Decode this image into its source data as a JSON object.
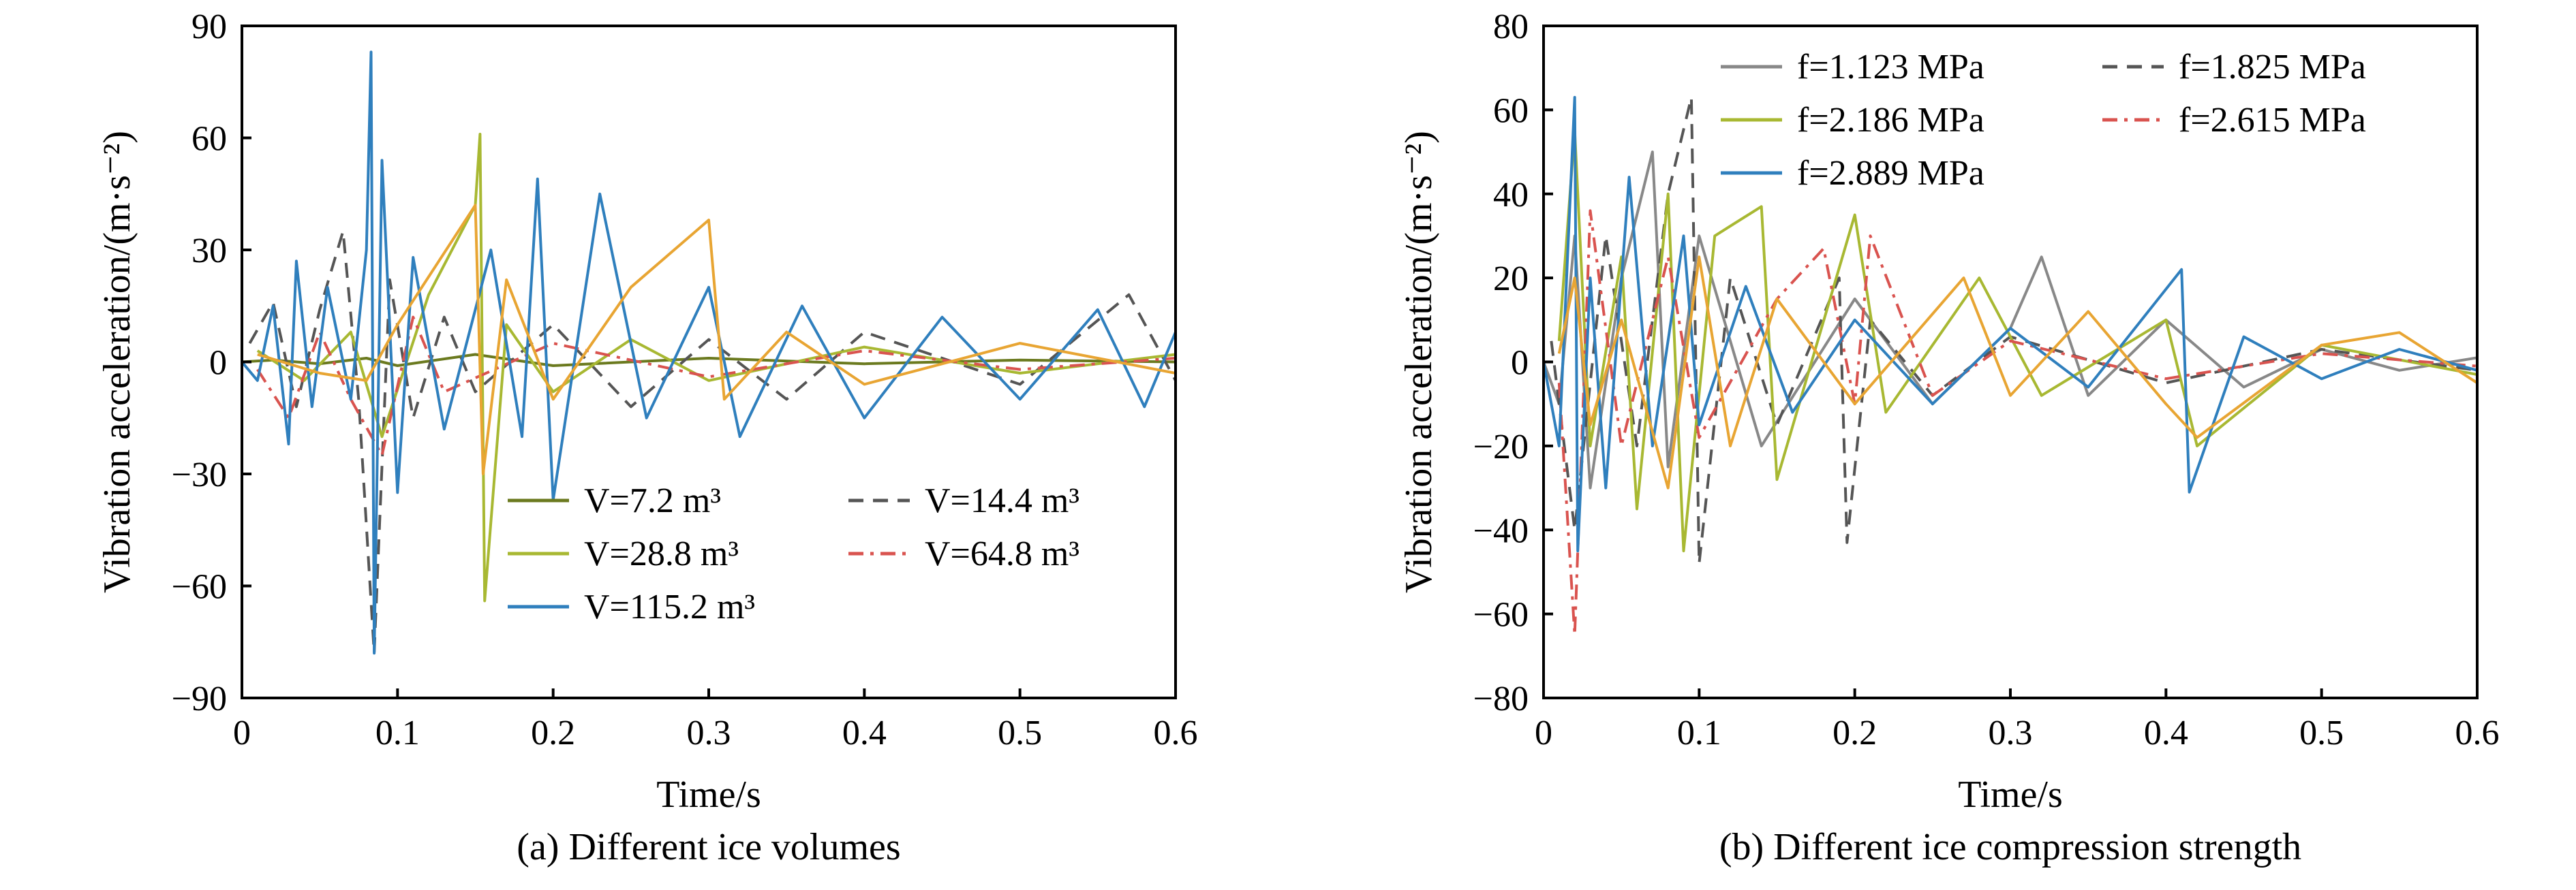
{
  "chart_data": [
    {
      "type": "line",
      "panel": "a",
      "caption": "(a) Different ice volumes",
      "xlabel": "Time/s",
      "ylabel": "Vibration acceleration/(m·s⁻²)",
      "xlim": [
        0,
        0.6
      ],
      "ylim": [
        -90,
        90
      ],
      "xticks": [
        "0",
        "0.1",
        "0.2",
        "0.3",
        "0.4",
        "0.5",
        "0.6"
      ],
      "xtick_values": [
        0,
        0.1,
        0.2,
        0.3,
        0.4,
        0.5,
        0.6
      ],
      "yticks": [
        "90",
        "60",
        "30",
        "0",
        "−30",
        "−60",
        "−90"
      ],
      "ytick_values": [
        90,
        60,
        30,
        0,
        -30,
        -60,
        -90
      ],
      "legend_position": "bottom-right",
      "series": [
        {
          "name": "V=7.2 m³",
          "color": "#6b7a1f",
          "dash": "solid",
          "points": [
            [
              0,
              0
            ],
            [
              0.02,
              0.5
            ],
            [
              0.05,
              -0.5
            ],
            [
              0.08,
              1
            ],
            [
              0.1,
              -1
            ],
            [
              0.15,
              2
            ],
            [
              0.2,
              -1
            ],
            [
              0.3,
              1
            ],
            [
              0.4,
              -0.5
            ],
            [
              0.5,
              0.5
            ],
            [
              0.6,
              0
            ]
          ]
        },
        {
          "name": "V=14.4 m³",
          "color": "#555555",
          "dash": "dashed",
          "points": [
            [
              0.005,
              5
            ],
            [
              0.02,
              16
            ],
            [
              0.035,
              -12
            ],
            [
              0.05,
              14
            ],
            [
              0.065,
              35
            ],
            [
              0.075,
              -10
            ],
            [
              0.085,
              -78
            ],
            [
              0.095,
              22
            ],
            [
              0.11,
              -15
            ],
            [
              0.13,
              12
            ],
            [
              0.15,
              -8
            ],
            [
              0.2,
              10
            ],
            [
              0.25,
              -12
            ],
            [
              0.3,
              6
            ],
            [
              0.35,
              -10
            ],
            [
              0.4,
              8
            ],
            [
              0.5,
              -6
            ],
            [
              0.57,
              18
            ],
            [
              0.6,
              -5
            ]
          ]
        },
        {
          "name": "V=28.8 m³",
          "color": "#a8b832",
          "dash": "solid",
          "points": [
            [
              0.01,
              3
            ],
            [
              0.04,
              -5
            ],
            [
              0.07,
              8
            ],
            [
              0.09,
              -20
            ],
            [
              0.12,
              18
            ],
            [
              0.15,
              42
            ],
            [
              0.153,
              61
            ],
            [
              0.156,
              -64
            ],
            [
              0.17,
              10
            ],
            [
              0.2,
              -8
            ],
            [
              0.25,
              6
            ],
            [
              0.3,
              -5
            ],
            [
              0.4,
              4
            ],
            [
              0.5,
              -3
            ],
            [
              0.6,
              2
            ]
          ]
        },
        {
          "name": "V=64.8 m³",
          "color": "#d9534f",
          "dash": "dashdot",
          "points": [
            [
              0.01,
              -2
            ],
            [
              0.03,
              -15
            ],
            [
              0.05,
              8
            ],
            [
              0.07,
              -10
            ],
            [
              0.09,
              -25
            ],
            [
              0.11,
              12
            ],
            [
              0.13,
              -8
            ],
            [
              0.2,
              5
            ],
            [
              0.3,
              -4
            ],
            [
              0.4,
              3
            ],
            [
              0.5,
              -2
            ],
            [
              0.6,
              1
            ]
          ]
        },
        {
          "name": "V=115.2 m³",
          "color": "#2f7fbd",
          "dash": "solid",
          "points": [
            [
              0,
              0
            ],
            [
              0.01,
              -5
            ],
            [
              0.02,
              15
            ],
            [
              0.03,
              -22
            ],
            [
              0.035,
              27
            ],
            [
              0.045,
              -12
            ],
            [
              0.055,
              20
            ],
            [
              0.07,
              -10
            ],
            [
              0.08,
              30
            ],
            [
              0.083,
              83
            ],
            [
              0.085,
              -78
            ],
            [
              0.09,
              54
            ],
            [
              0.1,
              -35
            ],
            [
              0.11,
              28
            ],
            [
              0.13,
              -18
            ],
            [
              0.16,
              30
            ],
            [
              0.18,
              -20
            ],
            [
              0.19,
              49
            ],
            [
              0.2,
              -37
            ],
            [
              0.23,
              45
            ],
            [
              0.26,
              -15
            ],
            [
              0.3,
              20
            ],
            [
              0.32,
              -20
            ],
            [
              0.36,
              15
            ],
            [
              0.4,
              -15
            ],
            [
              0.45,
              12
            ],
            [
              0.5,
              -10
            ],
            [
              0.55,
              14
            ],
            [
              0.58,
              -12
            ],
            [
              0.6,
              8
            ]
          ]
        },
        {
          "name": "",
          "color": "#e8a533",
          "dash": "solid",
          "points": [
            [
              0.01,
              2
            ],
            [
              0.05,
              -3
            ],
            [
              0.08,
              -5
            ],
            [
              0.1,
              10
            ],
            [
              0.15,
              42
            ],
            [
              0.155,
              -30
            ],
            [
              0.17,
              22
            ],
            [
              0.2,
              -10
            ],
            [
              0.25,
              20
            ],
            [
              0.3,
              38
            ],
            [
              0.31,
              -10
            ],
            [
              0.35,
              8
            ],
            [
              0.4,
              -6
            ],
            [
              0.5,
              5
            ],
            [
              0.6,
              -3
            ]
          ]
        }
      ]
    },
    {
      "type": "line",
      "panel": "b",
      "caption": "(b) Different ice compression strength",
      "xlabel": "Time/s",
      "ylabel": "Vibration acceleration/(m·s⁻²)",
      "xlim": [
        0,
        0.6
      ],
      "ylim": [
        -80,
        80
      ],
      "xticks": [
        "0",
        "0.1",
        "0.2",
        "0.3",
        "0.4",
        "0.5",
        "0.6"
      ],
      "xtick_values": [
        0,
        0.1,
        0.2,
        0.3,
        0.4,
        0.5,
        0.6
      ],
      "yticks": [
        "80",
        "60",
        "40",
        "20",
        "0",
        "−20",
        "−40",
        "−60",
        "−80"
      ],
      "ytick_values": [
        80,
        60,
        40,
        20,
        0,
        -20,
        -40,
        -60,
        -80
      ],
      "legend_position": "top-right",
      "series": [
        {
          "name": "f=1.123 MPa",
          "color": "#888888",
          "dash": "solid",
          "points": [
            [
              0,
              0
            ],
            [
              0.01,
              -10
            ],
            [
              0.02,
              30
            ],
            [
              0.03,
              -30
            ],
            [
              0.05,
              20
            ],
            [
              0.07,
              50
            ],
            [
              0.08,
              -25
            ],
            [
              0.1,
              30
            ],
            [
              0.14,
              -20
            ],
            [
              0.2,
              15
            ],
            [
              0.25,
              -10
            ],
            [
              0.3,
              8
            ],
            [
              0.32,
              25
            ],
            [
              0.35,
              -8
            ],
            [
              0.4,
              10
            ],
            [
              0.45,
              -6
            ],
            [
              0.5,
              3
            ],
            [
              0.55,
              -2
            ],
            [
              0.6,
              1
            ]
          ]
        },
        {
          "name": "f=1.825 MPa",
          "color": "#555555",
          "dash": "dashed",
          "points": [
            [
              0.005,
              5
            ],
            [
              0.02,
              -40
            ],
            [
              0.04,
              30
            ],
            [
              0.06,
              -20
            ],
            [
              0.08,
              40
            ],
            [
              0.095,
              63
            ],
            [
              0.1,
              -48
            ],
            [
              0.12,
              20
            ],
            [
              0.15,
              -15
            ],
            [
              0.19,
              20
            ],
            [
              0.195,
              -43
            ],
            [
              0.21,
              10
            ],
            [
              0.25,
              -8
            ],
            [
              0.3,
              6
            ],
            [
              0.4,
              -5
            ],
            [
              0.5,
              3
            ],
            [
              0.6,
              -2
            ]
          ]
        },
        {
          "name": "f=2.186 MPa",
          "color": "#a8b832",
          "dash": "solid",
          "points": [
            [
              0.01,
              5
            ],
            [
              0.02,
              55
            ],
            [
              0.03,
              -20
            ],
            [
              0.05,
              25
            ],
            [
              0.06,
              -35
            ],
            [
              0.08,
              40
            ],
            [
              0.09,
              -45
            ],
            [
              0.11,
              30
            ],
            [
              0.14,
              37
            ],
            [
              0.15,
              -28
            ],
            [
              0.2,
              35
            ],
            [
              0.22,
              -12
            ],
            [
              0.28,
              20
            ],
            [
              0.32,
              -8
            ],
            [
              0.4,
              10
            ],
            [
              0.42,
              -20
            ],
            [
              0.5,
              4
            ],
            [
              0.6,
              -3
            ]
          ]
        },
        {
          "name": "f=2.615 MPa",
          "color": "#d9534f",
          "dash": "dashdot",
          "points": [
            [
              0.01,
              -5
            ],
            [
              0.02,
              -65
            ],
            [
              0.03,
              36
            ],
            [
              0.05,
              -20
            ],
            [
              0.08,
              25
            ],
            [
              0.1,
              -18
            ],
            [
              0.15,
              15
            ],
            [
              0.18,
              27
            ],
            [
              0.2,
              -10
            ],
            [
              0.21,
              30
            ],
            [
              0.25,
              -8
            ],
            [
              0.3,
              5
            ],
            [
              0.4,
              -4
            ],
            [
              0.5,
              2
            ],
            [
              0.6,
              -1
            ]
          ]
        },
        {
          "name": "f=2.889 MPa",
          "color": "#2f7fbd",
          "dash": "solid",
          "points": [
            [
              0,
              0
            ],
            [
              0.01,
              -20
            ],
            [
              0.02,
              63
            ],
            [
              0.022,
              -45
            ],
            [
              0.03,
              20
            ],
            [
              0.04,
              -30
            ],
            [
              0.055,
              44
            ],
            [
              0.07,
              -20
            ],
            [
              0.09,
              30
            ],
            [
              0.1,
              -15
            ],
            [
              0.13,
              18
            ],
            [
              0.16,
              -12
            ],
            [
              0.2,
              10
            ],
            [
              0.25,
              -10
            ],
            [
              0.3,
              8
            ],
            [
              0.35,
              -6
            ],
            [
              0.41,
              22
            ],
            [
              0.415,
              -31
            ],
            [
              0.45,
              6
            ],
            [
              0.5,
              -4
            ],
            [
              0.55,
              3
            ],
            [
              0.6,
              -2
            ]
          ]
        },
        {
          "name": "",
          "color": "#e8a533",
          "dash": "solid",
          "points": [
            [
              0.01,
              2
            ],
            [
              0.02,
              20
            ],
            [
              0.03,
              -15
            ],
            [
              0.05,
              10
            ],
            [
              0.08,
              -30
            ],
            [
              0.1,
              25
            ],
            [
              0.12,
              -20
            ],
            [
              0.15,
              15
            ],
            [
              0.2,
              -10
            ],
            [
              0.27,
              20
            ],
            [
              0.3,
              -8
            ],
            [
              0.35,
              12
            ],
            [
              0.4,
              -10
            ],
            [
              0.42,
              -18
            ],
            [
              0.5,
              4
            ],
            [
              0.55,
              7
            ],
            [
              0.6,
              -5
            ]
          ]
        }
      ]
    }
  ]
}
